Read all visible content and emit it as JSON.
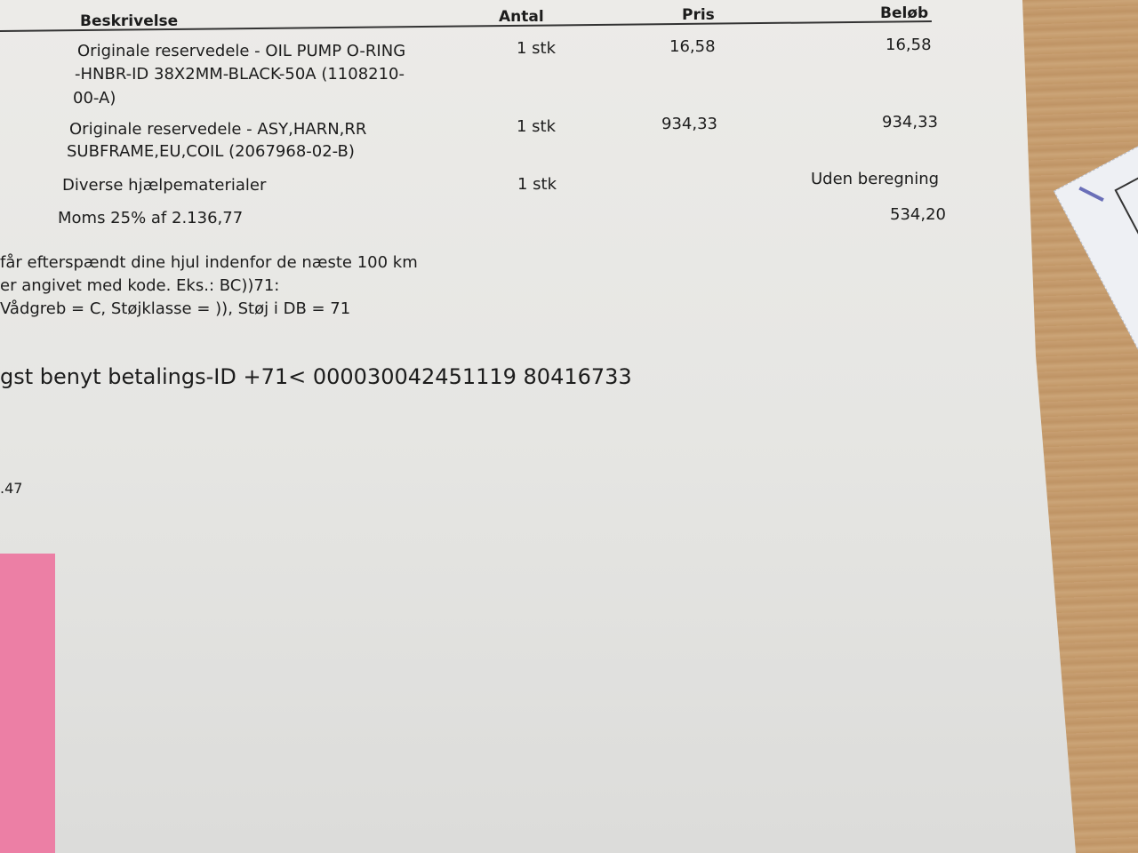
{
  "table": {
    "headers": {
      "description": "Beskrivelse",
      "quantity": "Antal",
      "price": "Pris",
      "amount": "Beløb"
    },
    "rows": [
      {
        "description_lines": [
          "Originale reservedele -  OIL PUMP O-RING",
          "-HNBR-ID 38X2MM-BLACK-50A (1108210-",
          "00-A)"
        ],
        "quantity": "1 stk",
        "price": "16,58",
        "amount": "16,58"
      },
      {
        "description_lines": [
          "Originale reservedele - ASY,HARN,RR",
          "SUBFRAME,EU,COIL (2067968-02-B)"
        ],
        "quantity": "1 stk",
        "price": "934,33",
        "amount": "934,33"
      },
      {
        "description_lines": [
          "Diverse hjælpematerialer"
        ],
        "quantity": "1 stk",
        "price": "",
        "amount": "Uden beregning"
      }
    ],
    "vat": {
      "label": "Moms 25% af 2.136,77",
      "amount": "534,20"
    }
  },
  "notes": [
    "får efterspændt dine hjul indenfor de næste 100 km",
    "er angivet med kode. Eks.: BC))71:",
    "Vådgreb = C, Støjklasse = )), Støj i DB = 71"
  ],
  "payment_line": "gst benyt betalings-ID +71< 000030042451119 80416733",
  "fragment": ".47",
  "colors": {
    "paper": "#e8e8e5",
    "sticky_note": "#ec7fa5",
    "wood": "#c49a6c",
    "ink": "#1c1c1c"
  }
}
